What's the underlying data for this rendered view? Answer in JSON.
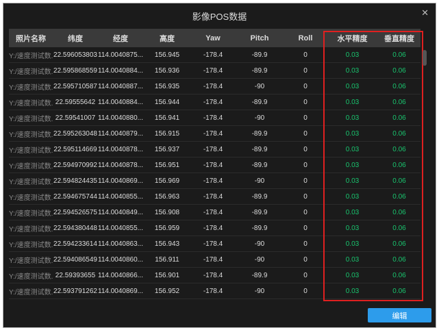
{
  "dialog": {
    "title": "影像POS数据",
    "close_icon": "close-icon",
    "edit_label": "编辑"
  },
  "colors": {
    "accent": "#2d9ceb",
    "precision": "#19c46e",
    "highlight": "#e02020"
  },
  "columns": [
    "照片名称",
    "纬度",
    "经度",
    "高度",
    "Yaw",
    "Pitch",
    "Roll",
    "水平精度",
    "垂直精度"
  ],
  "rows": [
    [
      "Y:/速度测试数...",
      "22.596053803",
      "114.0040875...",
      "156.945",
      "-178.4",
      "-89.9",
      "0",
      "0.03",
      "0.06"
    ],
    [
      "Y:/速度测试数...",
      "22.595868559",
      "114.0040884...",
      "156.936",
      "-178.4",
      "-89.9",
      "0",
      "0.03",
      "0.06"
    ],
    [
      "Y:/速度测试数...",
      "22.595710587",
      "114.0040887...",
      "156.935",
      "-178.4",
      "-90",
      "0",
      "0.03",
      "0.06"
    ],
    [
      "Y:/速度测试数...",
      "22.59555642",
      "114.0040884...",
      "156.944",
      "-178.4",
      "-89.9",
      "0",
      "0.03",
      "0.06"
    ],
    [
      "Y:/速度测试数...",
      "22.59541007",
      "114.0040880...",
      "156.941",
      "-178.4",
      "-90",
      "0",
      "0.03",
      "0.06"
    ],
    [
      "Y:/速度测试数...",
      "22.595263048",
      "114.0040879...",
      "156.915",
      "-178.4",
      "-89.9",
      "0",
      "0.03",
      "0.06"
    ],
    [
      "Y:/速度测试数...",
      "22.595114669",
      "114.0040878...",
      "156.937",
      "-178.4",
      "-89.9",
      "0",
      "0.03",
      "0.06"
    ],
    [
      "Y:/速度测试数...",
      "22.594970992",
      "114.0040878...",
      "156.951",
      "-178.4",
      "-89.9",
      "0",
      "0.03",
      "0.06"
    ],
    [
      "Y:/速度测试数...",
      "22.594824435",
      "114.0040869...",
      "156.969",
      "-178.4",
      "-90",
      "0",
      "0.03",
      "0.06"
    ],
    [
      "Y:/速度测试数...",
      "22.594675744",
      "114.0040855...",
      "156.963",
      "-178.4",
      "-89.9",
      "0",
      "0.03",
      "0.06"
    ],
    [
      "Y:/速度测试数...",
      "22.594526575",
      "114.0040849...",
      "156.908",
      "-178.4",
      "-89.9",
      "0",
      "0.03",
      "0.06"
    ],
    [
      "Y:/速度测试数...",
      "22.594380448",
      "114.0040855...",
      "156.959",
      "-178.4",
      "-89.9",
      "0",
      "0.03",
      "0.06"
    ],
    [
      "Y:/速度测试数...",
      "22.594233614",
      "114.0040863...",
      "156.943",
      "-178.4",
      "-90",
      "0",
      "0.03",
      "0.06"
    ],
    [
      "Y:/速度测试数...",
      "22.594086549",
      "114.0040860...",
      "156.911",
      "-178.4",
      "-90",
      "0",
      "0.03",
      "0.06"
    ],
    [
      "Y:/速度测试数...",
      "22.59393655",
      "114.0040866...",
      "156.901",
      "-178.4",
      "-89.9",
      "0",
      "0.03",
      "0.06"
    ],
    [
      "Y:/速度测试数...",
      "22.593791262",
      "114.0040869...",
      "156.952",
      "-178.4",
      "-90",
      "0",
      "0.03",
      "0.06"
    ]
  ]
}
